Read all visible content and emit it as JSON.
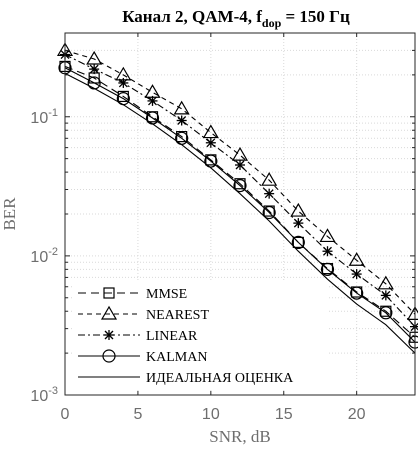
{
  "chart_data": {
    "type": "line",
    "title": {
      "prefix": "Канал 2, QAM-4, f",
      "subscript": "dop",
      "suffix": " = 150 Гц"
    },
    "xlabel": "SNR, dB",
    "ylabel": "BER",
    "xlim": [
      0,
      24
    ],
    "ylim": [
      0.001,
      0.4
    ],
    "y_scale": "log",
    "grid": true,
    "x_ticks": [
      0,
      5,
      10,
      15,
      20
    ],
    "y_ticks": [
      {
        "value": 0.1,
        "base": "10",
        "exp": "-1"
      },
      {
        "value": 0.01,
        "base": "10",
        "exp": "-2"
      },
      {
        "value": 0.001,
        "base": "10",
        "exp": "-3"
      }
    ],
    "legend_position": "bottom-left",
    "series": [
      {
        "name": "MMSE",
        "marker": "square",
        "dash": "8,5",
        "x": [
          0,
          2,
          4,
          6,
          8,
          10,
          12,
          14,
          16,
          18,
          20,
          22,
          24
        ],
        "y": [
          0.23,
          0.19,
          0.14,
          0.1,
          0.072,
          0.049,
          0.033,
          0.021,
          0.0125,
          0.0081,
          0.0055,
          0.004,
          0.0026
        ]
      },
      {
        "name": "NEAREST",
        "marker": "triangle",
        "dash": "5,4",
        "x": [
          0,
          2,
          4,
          6,
          8,
          10,
          12,
          14,
          16,
          18,
          20,
          22,
          24
        ],
        "y": [
          0.3,
          0.26,
          0.2,
          0.15,
          0.114,
          0.077,
          0.053,
          0.035,
          0.021,
          0.0138,
          0.0093,
          0.0063,
          0.0038
        ]
      },
      {
        "name": "LINEAR",
        "marker": "star",
        "dash": "7,3,2,3",
        "x": [
          0,
          2,
          4,
          6,
          8,
          10,
          12,
          14,
          16,
          18,
          20,
          22,
          24
        ],
        "y": [
          0.28,
          0.22,
          0.175,
          0.13,
          0.094,
          0.065,
          0.045,
          0.028,
          0.0172,
          0.0108,
          0.0074,
          0.0052,
          0.0031
        ]
      },
      {
        "name": "KALMAN",
        "marker": "circle",
        "dash": "",
        "x": [
          0,
          2,
          4,
          6,
          8,
          10,
          12,
          14,
          16,
          18,
          20,
          22,
          24
        ],
        "y": [
          0.225,
          0.175,
          0.135,
          0.098,
          0.07,
          0.048,
          0.032,
          0.0205,
          0.0125,
          0.008,
          0.0054,
          0.0039,
          0.0024
        ]
      },
      {
        "name": "ИДЕАЛЬНАЯ ОЦЕНКА",
        "marker": "none",
        "dash": "",
        "x": [
          0,
          2,
          4,
          6,
          8,
          10,
          12,
          14,
          16,
          18,
          20,
          22,
          24
        ],
        "y": [
          0.205,
          0.16,
          0.122,
          0.089,
          0.063,
          0.043,
          0.028,
          0.0178,
          0.0108,
          0.0068,
          0.0045,
          0.0032,
          0.002
        ]
      }
    ]
  }
}
